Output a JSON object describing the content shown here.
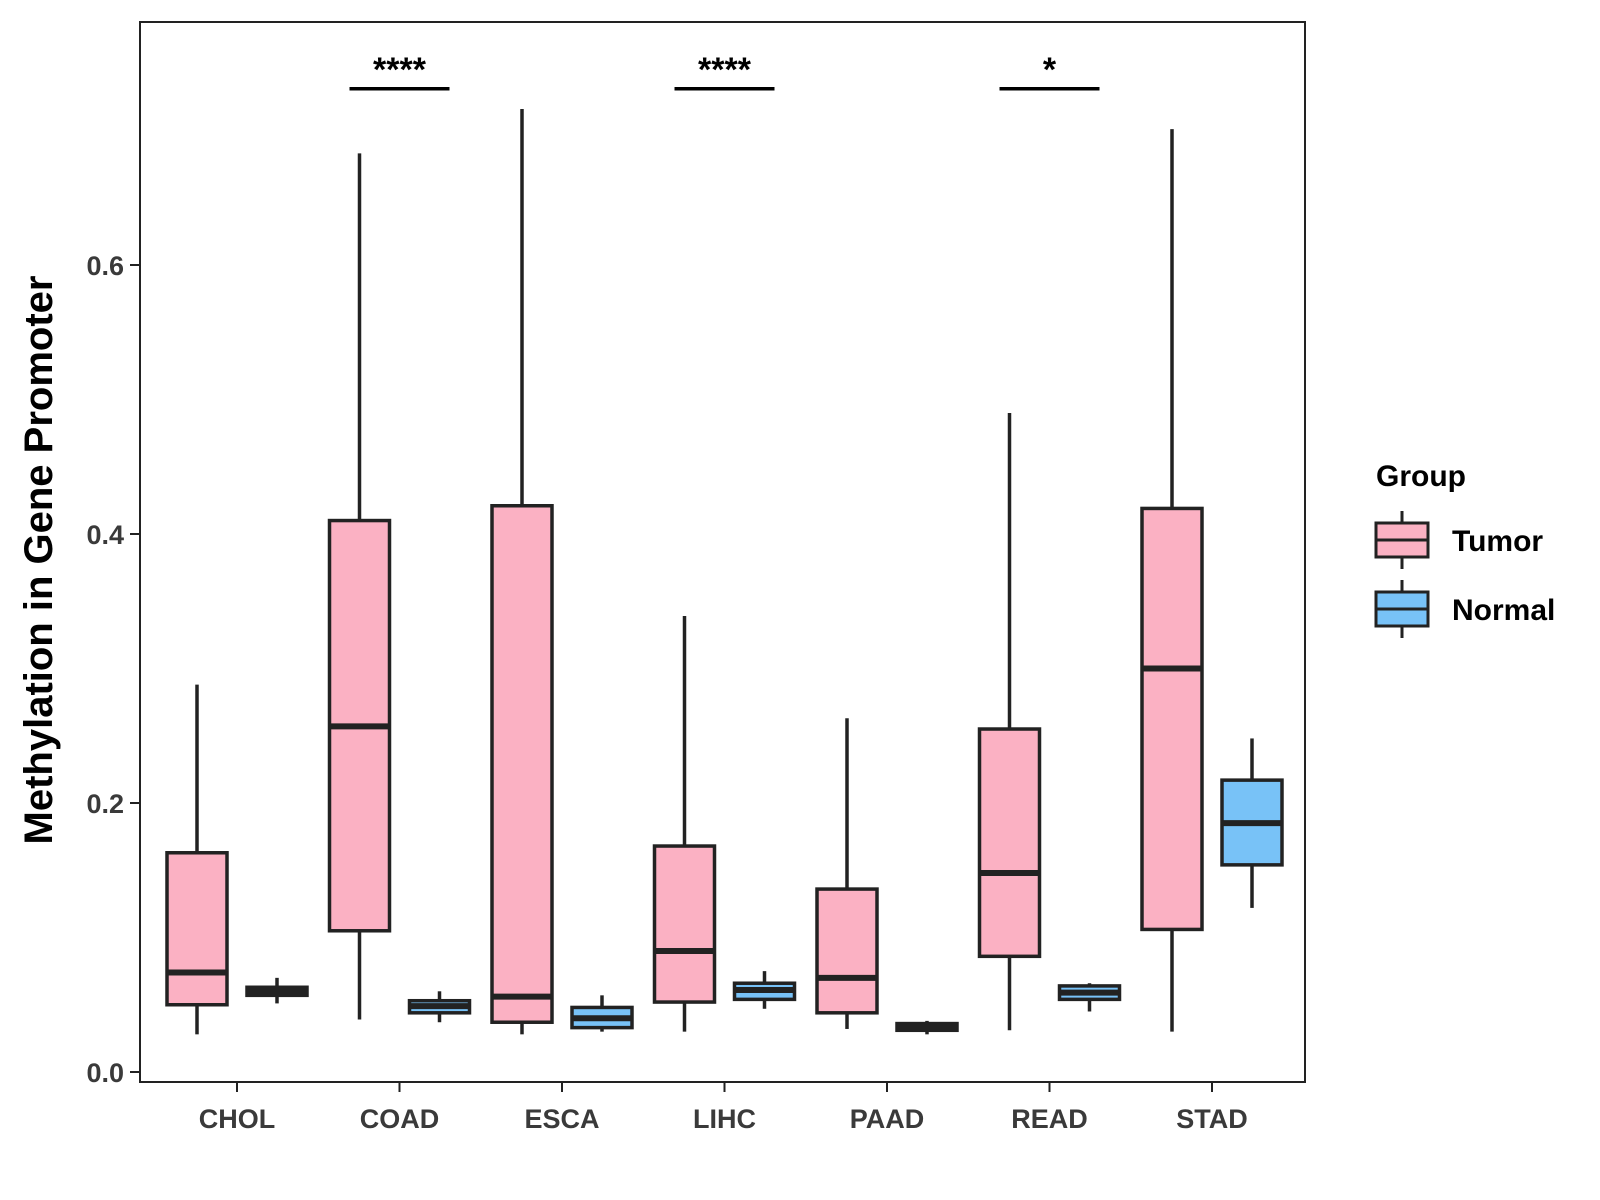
{
  "chart_data": {
    "type": "boxplot",
    "ylabel": "Methylation in Gene Promoter",
    "xlabel": "",
    "ylim": [
      0.0,
      0.78
    ],
    "yticks": [
      0.0,
      0.2,
      0.4,
      0.6
    ],
    "ytick_labels": [
      "0.0",
      "0.2",
      "0.4",
      "0.6"
    ],
    "categories": [
      "CHOL",
      "COAD",
      "ESCA",
      "LIHC",
      "PAAD",
      "READ",
      "STAD"
    ],
    "legend": {
      "title": "Group",
      "position": "right",
      "entries": [
        {
          "name": "Tumor",
          "color": "#fbb1c3"
        },
        {
          "name": "Normal",
          "color": "#78c2f7"
        }
      ]
    },
    "series": [
      {
        "name": "Tumor",
        "color": "#fbb1c3",
        "boxes": [
          {
            "category": "CHOL",
            "min": 0.028,
            "q1": 0.05,
            "median": 0.074,
            "q3": 0.163,
            "max": 0.288
          },
          {
            "category": "COAD",
            "min": 0.039,
            "q1": 0.105,
            "median": 0.257,
            "q3": 0.41,
            "max": 0.683
          },
          {
            "category": "ESCA",
            "min": 0.028,
            "q1": 0.037,
            "median": 0.056,
            "q3": 0.421,
            "max": 0.716
          },
          {
            "category": "LIHC",
            "min": 0.03,
            "q1": 0.052,
            "median": 0.09,
            "q3": 0.168,
            "max": 0.339
          },
          {
            "category": "PAAD",
            "min": 0.032,
            "q1": 0.044,
            "median": 0.07,
            "q3": 0.136,
            "max": 0.263
          },
          {
            "category": "READ",
            "min": 0.031,
            "q1": 0.086,
            "median": 0.148,
            "q3": 0.255,
            "max": 0.49
          },
          {
            "category": "STAD",
            "min": 0.03,
            "q1": 0.106,
            "median": 0.3,
            "q3": 0.419,
            "max": 0.701
          }
        ]
      },
      {
        "name": "Normal",
        "color": "#78c2f7",
        "boxes": [
          {
            "category": "CHOL",
            "min": 0.051,
            "q1": 0.057,
            "median": 0.06,
            "q3": 0.063,
            "max": 0.07
          },
          {
            "category": "COAD",
            "min": 0.037,
            "q1": 0.044,
            "median": 0.049,
            "q3": 0.053,
            "max": 0.06
          },
          {
            "category": "ESCA",
            "min": 0.03,
            "q1": 0.033,
            "median": 0.04,
            "q3": 0.048,
            "max": 0.057
          },
          {
            "category": "LIHC",
            "min": 0.047,
            "q1": 0.054,
            "median": 0.061,
            "q3": 0.066,
            "max": 0.075
          },
          {
            "category": "PAAD",
            "min": 0.028,
            "q1": 0.031,
            "median": 0.033,
            "q3": 0.036,
            "max": 0.038
          },
          {
            "category": "READ",
            "min": 0.045,
            "q1": 0.054,
            "median": 0.059,
            "q3": 0.064,
            "max": 0.066
          },
          {
            "category": "STAD",
            "min": 0.122,
            "q1": 0.154,
            "median": 0.185,
            "q3": 0.217,
            "max": 0.248
          }
        ]
      }
    ],
    "significance": [
      {
        "category": "COAD",
        "label": "****",
        "y": 0.731
      },
      {
        "category": "LIHC",
        "label": "****",
        "y": 0.731
      },
      {
        "category": "READ",
        "label": "*",
        "y": 0.731
      }
    ]
  }
}
